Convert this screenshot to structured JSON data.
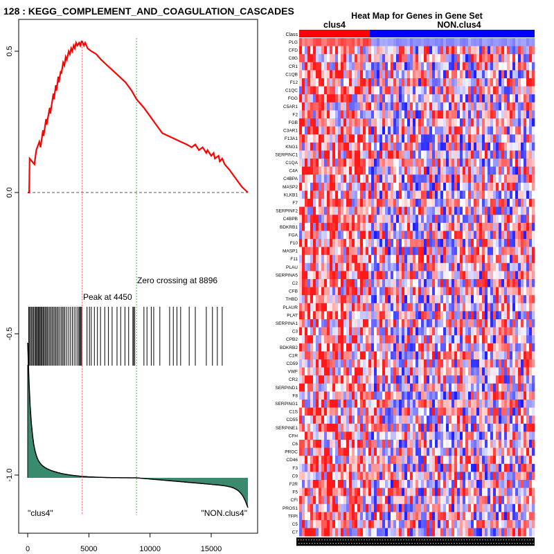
{
  "chart_data": [
    {
      "type": "line",
      "title": "128 : KEGG_COMPLEMENT_AND_COAGULATION_CASCADES",
      "xlabel": "",
      "ylabel": "",
      "xlim": [
        0,
        18000
      ],
      "ylim": [
        -1.2,
        0.6
      ],
      "xticks": [
        0,
        5000,
        10000,
        15000
      ],
      "yticks": [
        0.5,
        0.0,
        -0.5,
        -1.0
      ],
      "xtick_labels": [
        "0",
        "5000",
        "10000",
        "15000"
      ],
      "ytick_labels": [
        "0.5",
        "0.0",
        "-0.5",
        "-1.0"
      ],
      "peak_label": "Peak at 4450",
      "peak_x": 4450,
      "zero_label": "Zero crossing at 8896",
      "zero_x": 8896,
      "class_left_label": "\"clus4\"",
      "class_right_label": "\"NON.clus4\"",
      "colors": {
        "es_line": "#ff0000",
        "peak_line": "#ff6060",
        "zero_line": "#33cc33",
        "metric_fill": "#3a8a6e"
      },
      "series": [
        {
          "name": "Enrichment score",
          "x": [
            0,
            120,
            160,
            550,
            700,
            950,
            1050,
            1250,
            1300,
            1500,
            1550,
            1800,
            1850,
            2100,
            2150,
            2300,
            2350,
            2500,
            2550,
            2700,
            2750,
            2900,
            3000,
            3100,
            3200,
            3350,
            3450,
            3550,
            3650,
            3750,
            3850,
            3950,
            4050,
            4200,
            4300,
            4400,
            4450,
            4600,
            4700,
            4900,
            5200,
            5600,
            6000,
            6500,
            7000,
            7500,
            8000,
            8500,
            8896,
            9500,
            10000,
            10500,
            11000,
            11500,
            12000,
            12500,
            13000,
            13400,
            13700,
            14000,
            14300,
            14600,
            14700,
            15000,
            15200,
            15300,
            15600,
            15700,
            15900,
            16100,
            16500,
            17000,
            17500,
            18000
          ],
          "values": [
            0.0,
            0.0,
            0.12,
            0.1,
            0.15,
            0.18,
            0.16,
            0.22,
            0.2,
            0.26,
            0.24,
            0.3,
            0.28,
            0.35,
            0.33,
            0.38,
            0.36,
            0.41,
            0.39,
            0.43,
            0.42,
            0.46,
            0.45,
            0.48,
            0.47,
            0.5,
            0.49,
            0.51,
            0.5,
            0.52,
            0.51,
            0.53,
            0.52,
            0.53,
            0.52,
            0.535,
            0.535,
            0.52,
            0.53,
            0.51,
            0.5,
            0.49,
            0.47,
            0.45,
            0.43,
            0.41,
            0.39,
            0.36,
            0.33,
            0.3,
            0.27,
            0.24,
            0.21,
            0.2,
            0.19,
            0.18,
            0.17,
            0.16,
            0.17,
            0.15,
            0.16,
            0.14,
            0.15,
            0.13,
            0.14,
            0.12,
            0.13,
            0.11,
            0.12,
            0.1,
            0.08,
            0.05,
            0.02,
            0.0
          ]
        }
      ],
      "hits": [
        80,
        120,
        210,
        300,
        390,
        470,
        560,
        650,
        720,
        800,
        870,
        950,
        1020,
        1100,
        1180,
        1260,
        1340,
        1430,
        1520,
        1600,
        1700,
        1800,
        1900,
        2000,
        2100,
        2200,
        2300,
        2400,
        2500,
        2620,
        2740,
        2850,
        2950,
        3050,
        3200,
        3350,
        3500,
        3650,
        3800,
        3950,
        4100,
        4200,
        4280,
        4350,
        4420,
        4850,
        5050,
        5200,
        5450,
        5700,
        5950,
        6300,
        6600,
        6900,
        7300,
        7600,
        7950,
        8250,
        8600,
        8650,
        8750,
        9500,
        9750,
        10100,
        10300,
        10800,
        11600,
        11900,
        12200,
        12500,
        13200,
        13700,
        14600,
        15100,
        15500,
        15900
      ]
    },
    {
      "type": "heatmap",
      "title": "Heat Map for Genes in Gene Set",
      "class_row_label": "Class",
      "group_labels": [
        "clus4",
        "NON.clus4"
      ],
      "group_fraction": 0.3,
      "colors": {
        "clus4": "#ff0000",
        "non_clus4": "#0000ff"
      },
      "genes": [
        "PLG",
        "CFD",
        "C8G",
        "CR1",
        "C1QB",
        "F12",
        "C1QC",
        "FGG",
        "C5AR1",
        "F2",
        "FGB",
        "C3AR1",
        "F13A1",
        "KNG1",
        "SERPINC1",
        "C1QA",
        "C4A",
        "C4BPA",
        "MASP2",
        "KLKB1",
        "F7",
        "SERPINF2",
        "C4BPB",
        "BDKRB1",
        "FGA",
        "F10",
        "MASP1",
        "F11",
        "PLAU",
        "SERPINA5",
        "C2",
        "CFB",
        "THBD",
        "PLAUR",
        "PLAT",
        "SERPINA1",
        "C3",
        "CPB2",
        "BDKRB2",
        "C1R",
        "CD59",
        "VWF",
        "CR2",
        "SERPIND1",
        "F8",
        "SERPING1",
        "C1S",
        "CD55",
        "SERPINE1",
        "CFH",
        "C6",
        "PROC",
        "CD46",
        "F3",
        "C9",
        "F2R",
        "F5",
        "CFI",
        "PROS1",
        "TFPI",
        "C5",
        "C7"
      ]
    }
  ]
}
